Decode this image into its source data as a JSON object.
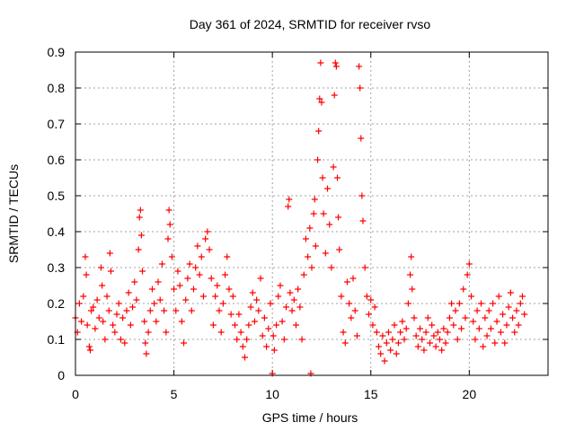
{
  "chart_data": {
    "type": "scatter",
    "title": "Day 361 of 2024, SRMTID for receiver rvso",
    "xlabel": "GPS time / hours",
    "ylabel": "SRMTID / TECUs",
    "xlim": [
      0,
      24
    ],
    "ylim": [
      0,
      0.9
    ],
    "xticks": [
      0,
      5,
      10,
      15,
      20
    ],
    "yticks": [
      0,
      0.1,
      0.2,
      0.3,
      0.4,
      0.5,
      0.6,
      0.7,
      0.8,
      0.9
    ],
    "xtick_labels": [
      "0",
      "5",
      "10",
      "15",
      "20"
    ],
    "ytick_labels": [
      "0",
      "0.1",
      "0.2",
      "0.3",
      "0.4",
      "0.5",
      "0.6",
      "0.7",
      "0.8",
      "0.9"
    ],
    "grid": true,
    "marker": "plus",
    "color": "#ff0000",
    "series": [
      {
        "name": "SRMTID",
        "points": [
          [
            0.0,
            0.16
          ],
          [
            0.1,
            0.12
          ],
          [
            0.2,
            0.2
          ],
          [
            0.3,
            0.15
          ],
          [
            0.4,
            0.22
          ],
          [
            0.5,
            0.33
          ],
          [
            0.55,
            0.28
          ],
          [
            0.6,
            0.14
          ],
          [
            0.7,
            0.08
          ],
          [
            0.75,
            0.07
          ],
          [
            0.8,
            0.18
          ],
          [
            0.9,
            0.19
          ],
          [
            1.0,
            0.13
          ],
          [
            1.1,
            0.21
          ],
          [
            1.2,
            0.16
          ],
          [
            1.3,
            0.3
          ],
          [
            1.35,
            0.25
          ],
          [
            1.4,
            0.15
          ],
          [
            1.5,
            0.1
          ],
          [
            1.6,
            0.22
          ],
          [
            1.7,
            0.18
          ],
          [
            1.75,
            0.34
          ],
          [
            1.8,
            0.29
          ],
          [
            1.9,
            0.14
          ],
          [
            2.0,
            0.12
          ],
          [
            2.1,
            0.17
          ],
          [
            2.2,
            0.2
          ],
          [
            2.3,
            0.1
          ],
          [
            2.4,
            0.16
          ],
          [
            2.5,
            0.09
          ],
          [
            2.6,
            0.18
          ],
          [
            2.7,
            0.23
          ],
          [
            2.8,
            0.14
          ],
          [
            2.9,
            0.19
          ],
          [
            3.0,
            0.26
          ],
          [
            3.1,
            0.21
          ],
          [
            3.2,
            0.35
          ],
          [
            3.25,
            0.44
          ],
          [
            3.3,
            0.46
          ],
          [
            3.35,
            0.39
          ],
          [
            3.4,
            0.29
          ],
          [
            3.5,
            0.15
          ],
          [
            3.55,
            0.09
          ],
          [
            3.6,
            0.06
          ],
          [
            3.7,
            0.12
          ],
          [
            3.8,
            0.18
          ],
          [
            3.9,
            0.24
          ],
          [
            4.0,
            0.2
          ],
          [
            4.1,
            0.15
          ],
          [
            4.2,
            0.26
          ],
          [
            4.3,
            0.21
          ],
          [
            4.4,
            0.31
          ],
          [
            4.5,
            0.18
          ],
          [
            4.6,
            0.12
          ],
          [
            4.7,
            0.38
          ],
          [
            4.75,
            0.46
          ],
          [
            4.8,
            0.42
          ],
          [
            4.9,
            0.33
          ],
          [
            5.0,
            0.24
          ],
          [
            5.1,
            0.18
          ],
          [
            5.2,
            0.29
          ],
          [
            5.3,
            0.25
          ],
          [
            5.4,
            0.15
          ],
          [
            5.5,
            0.09
          ],
          [
            5.6,
            0.21
          ],
          [
            5.7,
            0.27
          ],
          [
            5.8,
            0.31
          ],
          [
            5.9,
            0.18
          ],
          [
            6.0,
            0.24
          ],
          [
            6.1,
            0.3
          ],
          [
            6.2,
            0.36
          ],
          [
            6.3,
            0.28
          ],
          [
            6.4,
            0.33
          ],
          [
            6.5,
            0.22
          ],
          [
            6.6,
            0.38
          ],
          [
            6.7,
            0.4
          ],
          [
            6.8,
            0.35
          ],
          [
            6.9,
            0.27
          ],
          [
            7.0,
            0.14
          ],
          [
            7.1,
            0.22
          ],
          [
            7.2,
            0.25
          ],
          [
            7.3,
            0.18
          ],
          [
            7.4,
            0.12
          ],
          [
            7.5,
            0.2
          ],
          [
            7.6,
            0.28
          ],
          [
            7.7,
            0.33
          ],
          [
            7.8,
            0.24
          ],
          [
            7.9,
            0.17
          ],
          [
            8.0,
            0.22
          ],
          [
            8.1,
            0.14
          ],
          [
            8.2,
            0.1
          ],
          [
            8.3,
            0.17
          ],
          [
            8.4,
            0.12
          ],
          [
            8.5,
            0.08
          ],
          [
            8.6,
            0.05
          ],
          [
            8.7,
            0.1
          ],
          [
            8.8,
            0.14
          ],
          [
            8.9,
            0.19
          ],
          [
            9.0,
            0.23
          ],
          [
            9.1,
            0.15
          ],
          [
            9.2,
            0.21
          ],
          [
            9.3,
            0.18
          ],
          [
            9.4,
            0.27
          ],
          [
            9.5,
            0.11
          ],
          [
            9.6,
            0.16
          ],
          [
            9.7,
            0.08
          ],
          [
            9.8,
            0.13
          ],
          [
            9.9,
            0.2
          ],
          [
            10.0,
            0.005
          ],
          [
            10.05,
            0.11
          ],
          [
            10.1,
            0.07
          ],
          [
            10.2,
            0.14
          ],
          [
            10.3,
            0.22
          ],
          [
            10.4,
            0.25
          ],
          [
            10.5,
            0.15
          ],
          [
            10.6,
            0.1
          ],
          [
            10.7,
            0.19
          ],
          [
            10.8,
            0.47
          ],
          [
            10.85,
            0.49
          ],
          [
            10.9,
            0.23
          ],
          [
            11.0,
            0.18
          ],
          [
            11.1,
            0.21
          ],
          [
            11.2,
            0.14
          ],
          [
            11.3,
            0.24
          ],
          [
            11.4,
            0.19
          ],
          [
            11.5,
            0.1
          ],
          [
            11.6,
            0.28
          ],
          [
            11.7,
            0.38
          ],
          [
            11.8,
            0.33
          ],
          [
            11.9,
            0.41
          ],
          [
            11.95,
            0.005
          ],
          [
            12.0,
            0.3
          ],
          [
            12.1,
            0.45
          ],
          [
            12.15,
            0.49
          ],
          [
            12.2,
            0.36
          ],
          [
            12.3,
            0.6
          ],
          [
            12.35,
            0.68
          ],
          [
            12.4,
            0.77
          ],
          [
            12.45,
            0.87
          ],
          [
            12.5,
            0.76
          ],
          [
            12.55,
            0.55
          ],
          [
            12.6,
            0.45
          ],
          [
            12.7,
            0.34
          ],
          [
            12.8,
            0.52
          ],
          [
            12.9,
            0.42
          ],
          [
            13.0,
            0.3
          ],
          [
            13.1,
            0.58
          ],
          [
            13.15,
            0.78
          ],
          [
            13.2,
            0.87
          ],
          [
            13.25,
            0.86
          ],
          [
            13.3,
            0.55
          ],
          [
            13.35,
            0.44
          ],
          [
            13.4,
            0.35
          ],
          [
            13.5,
            0.22
          ],
          [
            13.6,
            0.12
          ],
          [
            13.7,
            0.09
          ],
          [
            13.8,
            0.26
          ],
          [
            13.9,
            0.2
          ],
          [
            14.0,
            0.16
          ],
          [
            14.1,
            0.27
          ],
          [
            14.2,
            0.18
          ],
          [
            14.3,
            0.11
          ],
          [
            14.4,
            0.86
          ],
          [
            14.45,
            0.8
          ],
          [
            14.5,
            0.66
          ],
          [
            14.55,
            0.5
          ],
          [
            14.6,
            0.43
          ],
          [
            14.7,
            0.3
          ],
          [
            14.8,
            0.22
          ],
          [
            14.9,
            0.17
          ],
          [
            15.0,
            0.21
          ],
          [
            15.1,
            0.14
          ],
          [
            15.2,
            0.19
          ],
          [
            15.3,
            0.12
          ],
          [
            15.4,
            0.08
          ],
          [
            15.5,
            0.06
          ],
          [
            15.6,
            0.11
          ],
          [
            15.7,
            0.04
          ],
          [
            15.8,
            0.09
          ],
          [
            15.9,
            0.12
          ],
          [
            16.0,
            0.07
          ],
          [
            16.1,
            0.1
          ],
          [
            16.2,
            0.14
          ],
          [
            16.3,
            0.06
          ],
          [
            16.4,
            0.09
          ],
          [
            16.5,
            0.12
          ],
          [
            16.6,
            0.15
          ],
          [
            16.7,
            0.1
          ],
          [
            16.8,
            0.13
          ],
          [
            16.9,
            0.2
          ],
          [
            17.0,
            0.28
          ],
          [
            17.05,
            0.33
          ],
          [
            17.1,
            0.24
          ],
          [
            17.2,
            0.16
          ],
          [
            17.3,
            0.11
          ],
          [
            17.4,
            0.08
          ],
          [
            17.5,
            0.13
          ],
          [
            17.6,
            0.1
          ],
          [
            17.7,
            0.07
          ],
          [
            17.8,
            0.12
          ],
          [
            17.9,
            0.16
          ],
          [
            18.0,
            0.09
          ],
          [
            18.1,
            0.14
          ],
          [
            18.2,
            0.11
          ],
          [
            18.3,
            0.08
          ],
          [
            18.4,
            0.12
          ],
          [
            18.5,
            0.1
          ],
          [
            18.6,
            0.07
          ],
          [
            18.7,
            0.13
          ],
          [
            18.8,
            0.09
          ],
          [
            18.9,
            0.12
          ],
          [
            19.0,
            0.16
          ],
          [
            19.1,
            0.2
          ],
          [
            19.2,
            0.14
          ],
          [
            19.3,
            0.18
          ],
          [
            19.4,
            0.1
          ],
          [
            19.5,
            0.2
          ],
          [
            19.6,
            0.13
          ],
          [
            19.7,
            0.24
          ],
          [
            19.8,
            0.16
          ],
          [
            19.9,
            0.28
          ],
          [
            20.0,
            0.31
          ],
          [
            20.1,
            0.22
          ],
          [
            20.2,
            0.15
          ],
          [
            20.3,
            0.1
          ],
          [
            20.4,
            0.18
          ],
          [
            20.5,
            0.13
          ],
          [
            20.6,
            0.2
          ],
          [
            20.7,
            0.08
          ],
          [
            20.8,
            0.16
          ],
          [
            20.9,
            0.11
          ],
          [
            21.0,
            0.18
          ],
          [
            21.1,
            0.13
          ],
          [
            21.2,
            0.2
          ],
          [
            21.3,
            0.09
          ],
          [
            21.4,
            0.15
          ],
          [
            21.5,
            0.22
          ],
          [
            21.6,
            0.12
          ],
          [
            21.7,
            0.17
          ],
          [
            21.8,
            0.09
          ],
          [
            21.9,
            0.14
          ],
          [
            22.0,
            0.19
          ],
          [
            22.1,
            0.23
          ],
          [
            22.2,
            0.16
          ],
          [
            22.3,
            0.12
          ],
          [
            22.4,
            0.18
          ],
          [
            22.5,
            0.14
          ],
          [
            22.6,
            0.2
          ],
          [
            22.7,
            0.22
          ],
          [
            22.8,
            0.17
          ]
        ]
      }
    ]
  }
}
